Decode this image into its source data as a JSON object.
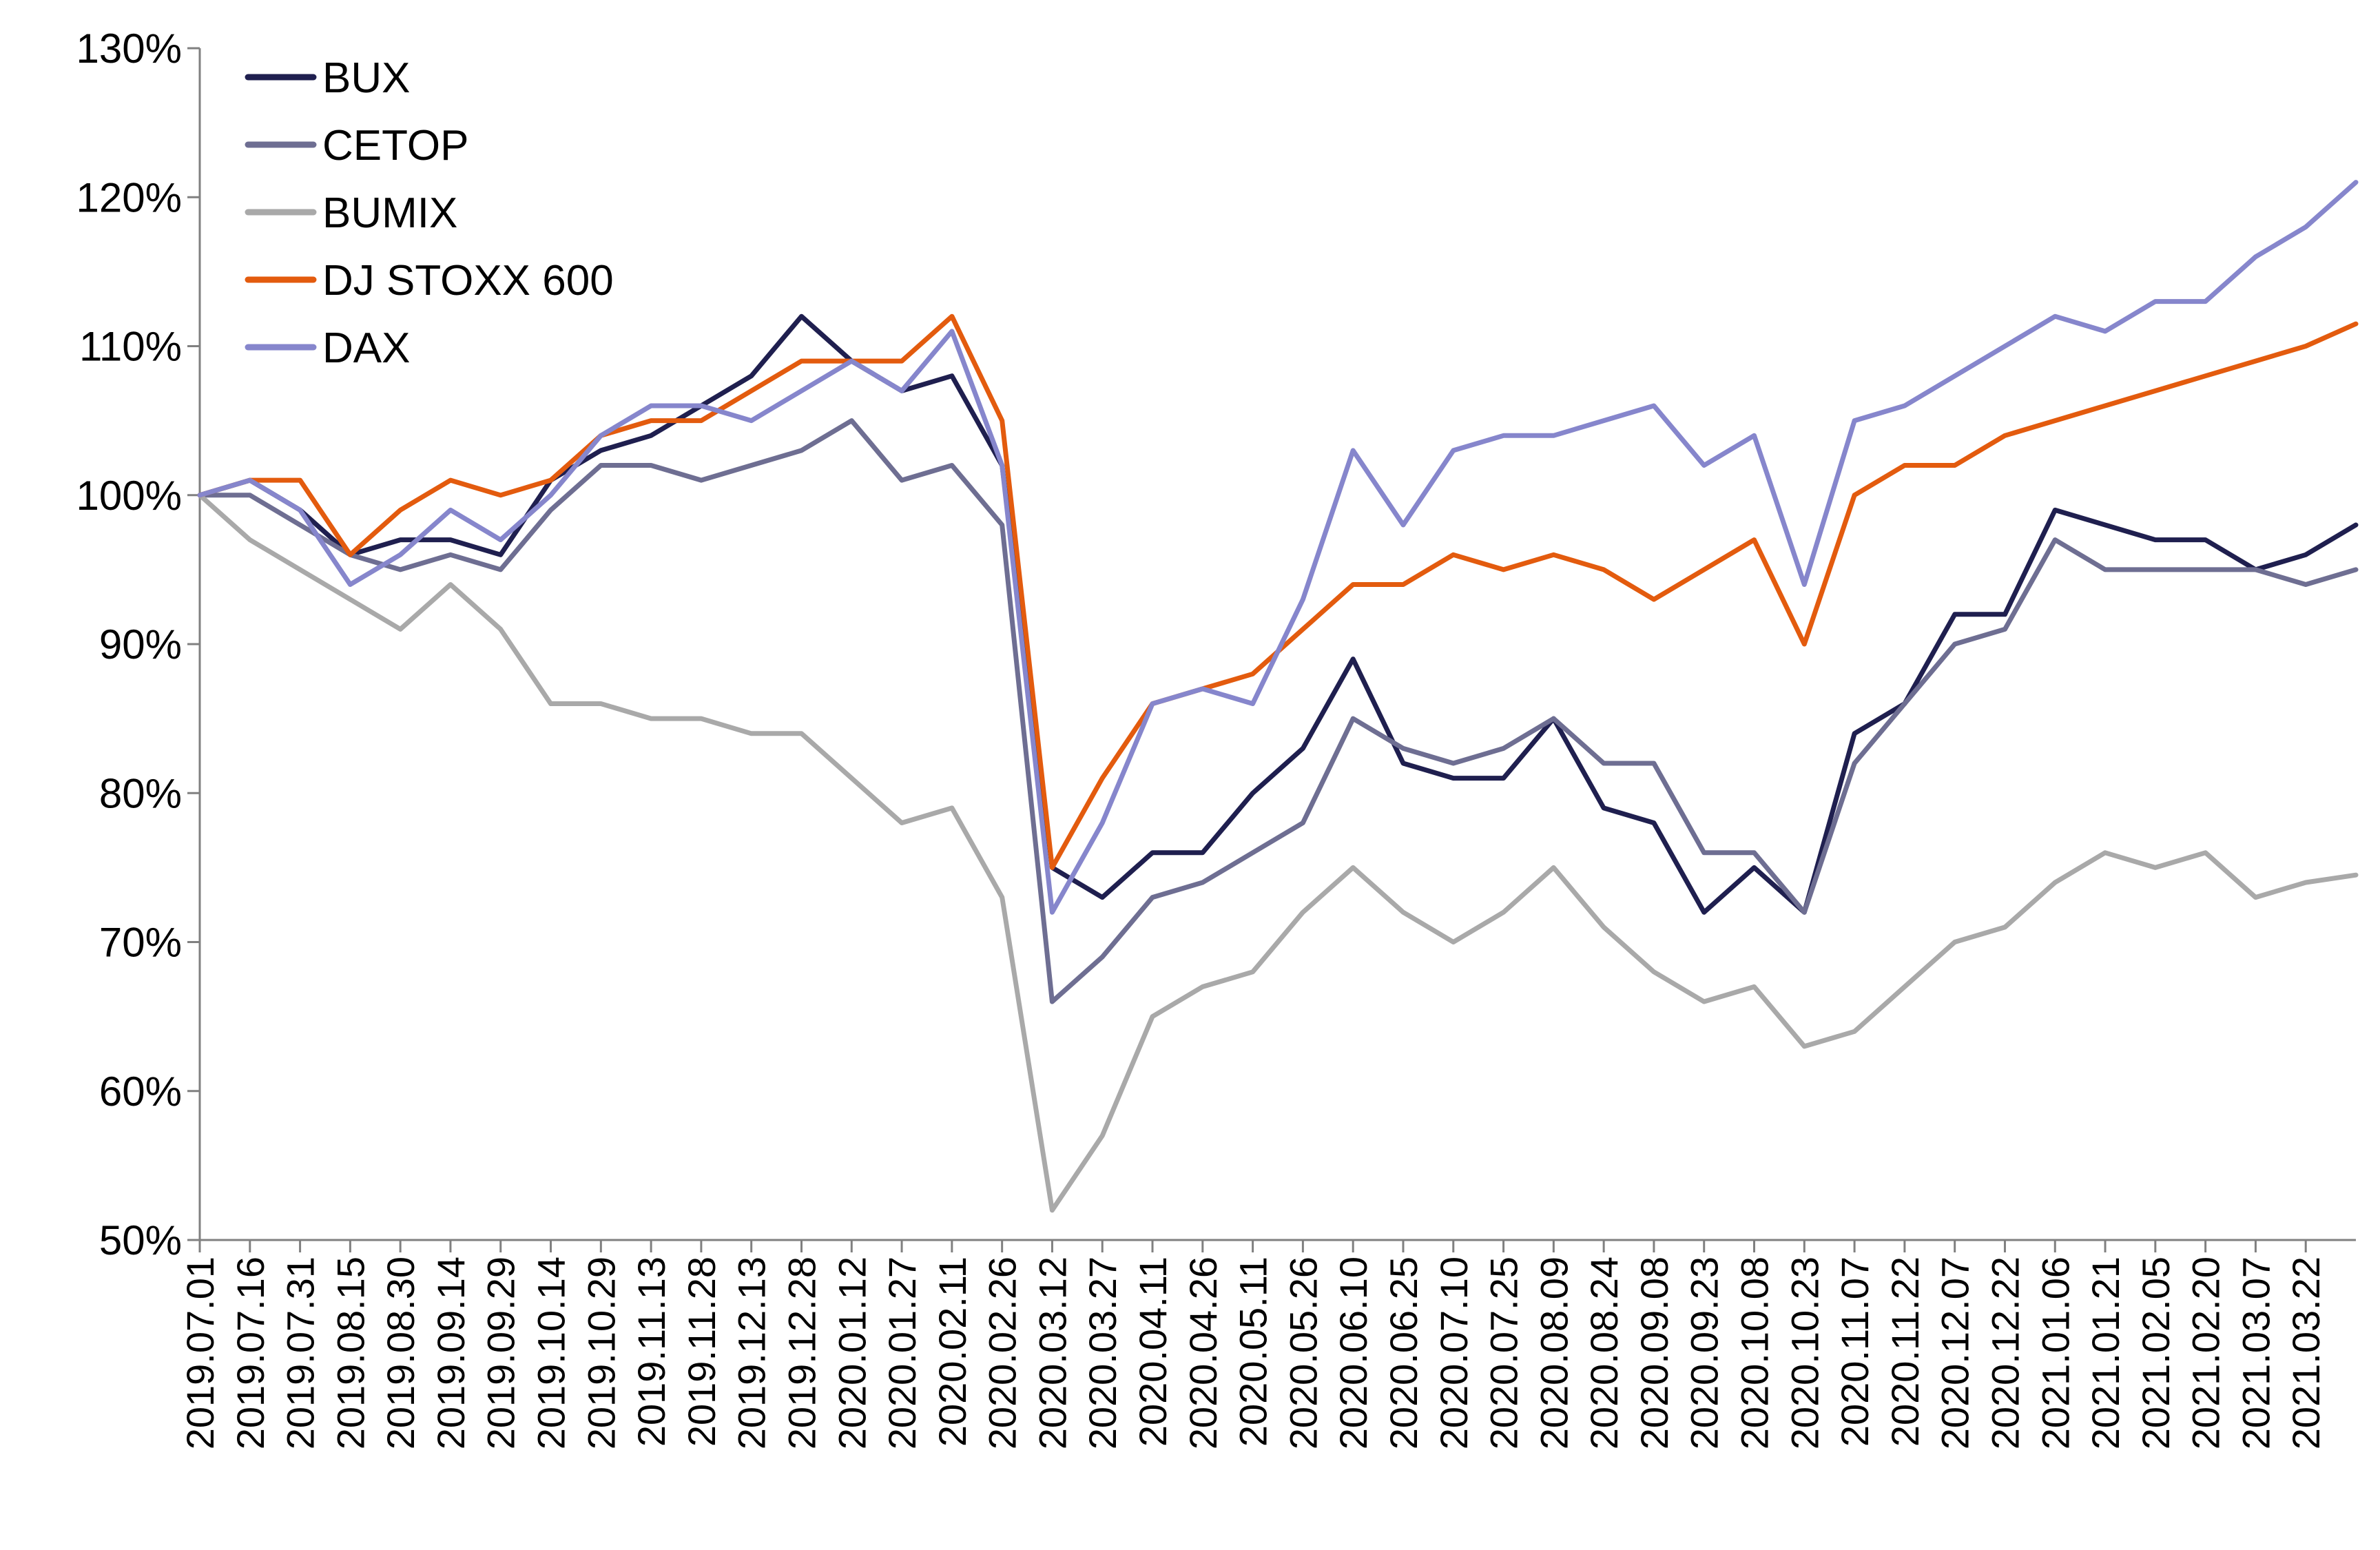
{
  "chart_data": {
    "type": "line",
    "title": "",
    "xlabel": "",
    "ylabel": "",
    "ylim": [
      0.5,
      1.3
    ],
    "yticks": [
      "50%",
      "60%",
      "70%",
      "80%",
      "90%",
      "100%",
      "110%",
      "120%",
      "130%"
    ],
    "y_tick_values": [
      0.5,
      0.6,
      0.7,
      0.8,
      0.9,
      1.0,
      1.1,
      1.2,
      1.3
    ],
    "x_tick_labels": [
      "2019.07.01",
      "2019.07.16",
      "2019.07.31",
      "2019.08.15",
      "2019.08.30",
      "2019.09.14",
      "2019.09.29",
      "2019.10.14",
      "2019.10.29",
      "2019.11.13",
      "2019.11.28",
      "2019.12.13",
      "2019.12.28",
      "2020.01.12",
      "2020.01.27",
      "2020.02.11",
      "2020.02.26",
      "2020.03.12",
      "2020.03.27",
      "2020.04.11",
      "2020.04.26",
      "2020.05.11",
      "2020.05.26",
      "2020.06.10",
      "2020.06.25",
      "2020.07.10",
      "2020.07.25",
      "2020.08.09",
      "2020.08.24",
      "2020.09.08",
      "2020.09.23",
      "2020.10.08",
      "2020.10.23",
      "2020.11.07",
      "2020.11.22",
      "2020.12.07",
      "2020.12.22",
      "2021.01.06",
      "2021.01.21",
      "2021.02.05",
      "2021.02.20",
      "2021.03.07",
      "2021.03.22"
    ],
    "x": [
      "2019.07.01",
      "2019.07.16",
      "2019.07.31",
      "2019.08.15",
      "2019.08.30",
      "2019.09.14",
      "2019.09.29",
      "2019.10.14",
      "2019.10.29",
      "2019.11.13",
      "2019.11.28",
      "2019.12.13",
      "2019.12.28",
      "2020.01.12",
      "2020.01.27",
      "2020.02.11",
      "2020.02.26",
      "2020.03.12",
      "2020.03.27",
      "2020.04.11",
      "2020.04.26",
      "2020.05.11",
      "2020.05.26",
      "2020.06.10",
      "2020.06.25",
      "2020.07.10",
      "2020.07.25",
      "2020.08.09",
      "2020.08.24",
      "2020.09.08",
      "2020.09.23",
      "2020.10.08",
      "2020.10.23",
      "2020.11.07",
      "2020.11.22",
      "2020.12.07",
      "2020.12.22",
      "2021.01.06",
      "2021.01.21",
      "2021.02.05",
      "2021.02.20",
      "2021.03.07",
      "2021.03.22",
      "2021.04.01"
    ],
    "grid": false,
    "legend_position": "top-left",
    "series": [
      {
        "name": "BUX",
        "color": "#1f1f4f",
        "values": [
          1.0,
          1.01,
          0.99,
          0.96,
          0.97,
          0.97,
          0.96,
          1.01,
          1.03,
          1.04,
          1.06,
          1.08,
          1.12,
          1.09,
          1.07,
          1.08,
          1.02,
          0.75,
          0.73,
          0.76,
          0.76,
          0.8,
          0.83,
          0.89,
          0.82,
          0.81,
          0.81,
          0.85,
          0.79,
          0.78,
          0.72,
          0.75,
          0.72,
          0.84,
          0.86,
          0.92,
          0.92,
          0.99,
          0.98,
          0.97,
          0.97,
          0.95,
          0.96,
          0.98
        ]
      },
      {
        "name": "CETOP",
        "color": "#6e6e92",
        "values": [
          1.0,
          1.0,
          0.98,
          0.96,
          0.95,
          0.96,
          0.95,
          0.99,
          1.02,
          1.02,
          1.01,
          1.02,
          1.03,
          1.05,
          1.01,
          1.02,
          0.98,
          0.66,
          0.69,
          0.73,
          0.74,
          0.76,
          0.78,
          0.85,
          0.83,
          0.82,
          0.83,
          0.85,
          0.82,
          0.82,
          0.76,
          0.76,
          0.72,
          0.82,
          0.86,
          0.9,
          0.91,
          0.97,
          0.95,
          0.95,
          0.95,
          0.95,
          0.94,
          0.95
        ]
      },
      {
        "name": "BUMIX",
        "color": "#a9a9a9",
        "values": [
          1.0,
          0.97,
          0.95,
          0.93,
          0.91,
          0.94,
          0.91,
          0.86,
          0.86,
          0.85,
          0.85,
          0.84,
          0.84,
          0.81,
          0.78,
          0.79,
          0.73,
          0.52,
          0.57,
          0.65,
          0.67,
          0.68,
          0.72,
          0.75,
          0.72,
          0.7,
          0.72,
          0.75,
          0.71,
          0.68,
          0.66,
          0.67,
          0.63,
          0.64,
          0.67,
          0.7,
          0.71,
          0.74,
          0.76,
          0.75,
          0.76,
          0.73,
          0.74,
          0.745
        ]
      },
      {
        "name": "DJ STOXX 600",
        "color": "#e35b0e",
        "values": [
          1.0,
          1.01,
          1.01,
          0.96,
          0.99,
          1.01,
          1.0,
          1.01,
          1.04,
          1.05,
          1.05,
          1.07,
          1.09,
          1.09,
          1.09,
          1.12,
          1.05,
          0.75,
          0.81,
          0.86,
          0.87,
          0.88,
          0.91,
          0.94,
          0.94,
          0.96,
          0.95,
          0.96,
          0.95,
          0.93,
          0.95,
          0.97,
          0.9,
          1.0,
          1.02,
          1.02,
          1.04,
          1.05,
          1.06,
          1.07,
          1.08,
          1.09,
          1.1,
          1.115
        ]
      },
      {
        "name": "DAX",
        "color": "#8686cc",
        "values": [
          1.0,
          1.01,
          0.99,
          0.94,
          0.96,
          0.99,
          0.97,
          1.0,
          1.04,
          1.06,
          1.06,
          1.05,
          1.07,
          1.09,
          1.07,
          1.11,
          1.02,
          0.72,
          0.78,
          0.86,
          0.87,
          0.86,
          0.93,
          1.03,
          0.98,
          1.03,
          1.04,
          1.04,
          1.05,
          1.06,
          1.02,
          1.04,
          0.94,
          1.05,
          1.06,
          1.08,
          1.1,
          1.12,
          1.11,
          1.13,
          1.13,
          1.16,
          1.18,
          1.21
        ]
      }
    ]
  }
}
